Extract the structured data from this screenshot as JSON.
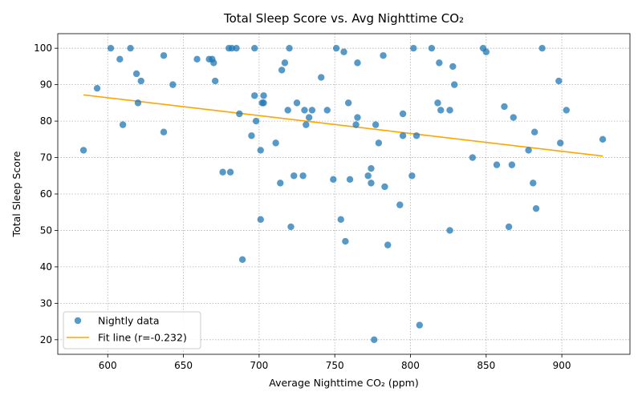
{
  "chart_data": {
    "type": "scatter",
    "title": "Total Sleep Score vs. Avg Nighttime CO₂",
    "xlabel": "Average Nighttime CO₂ (ppm)",
    "ylabel": "Total Sleep Score",
    "xlim": [
      567,
      945
    ],
    "ylim": [
      16,
      104
    ],
    "xticks": [
      600,
      650,
      700,
      750,
      800,
      850,
      900
    ],
    "yticks": [
      20,
      30,
      40,
      50,
      60,
      70,
      80,
      90,
      100
    ],
    "grid": true,
    "grid_style": "dotted",
    "legend_position": "lower-left",
    "series": [
      {
        "name": "Nightly data",
        "kind": "scatter",
        "color": "#1f77b4",
        "points": [
          [
            584,
            72
          ],
          [
            593,
            89
          ],
          [
            602,
            100
          ],
          [
            608,
            97
          ],
          [
            610,
            79
          ],
          [
            615,
            100
          ],
          [
            619,
            93
          ],
          [
            620,
            85
          ],
          [
            622,
            91
          ],
          [
            637,
            77
          ],
          [
            637,
            98
          ],
          [
            643,
            90
          ],
          [
            659,
            97
          ],
          [
            667,
            97
          ],
          [
            669,
            97
          ],
          [
            670,
            96
          ],
          [
            671,
            91
          ],
          [
            676,
            66
          ],
          [
            680,
            100
          ],
          [
            681,
            66
          ],
          [
            682,
            100
          ],
          [
            685,
            100
          ],
          [
            687,
            82
          ],
          [
            689,
            42
          ],
          [
            695,
            76
          ],
          [
            697,
            100
          ],
          [
            697,
            87
          ],
          [
            698,
            80
          ],
          [
            701,
            72
          ],
          [
            701,
            53
          ],
          [
            702,
            85
          ],
          [
            703,
            87
          ],
          [
            703,
            85
          ],
          [
            711,
            74
          ],
          [
            714,
            63
          ],
          [
            715,
            94
          ],
          [
            717,
            96
          ],
          [
            719,
            83
          ],
          [
            720,
            100
          ],
          [
            721,
            51
          ],
          [
            723,
            65
          ],
          [
            725,
            85
          ],
          [
            729,
            65
          ],
          [
            730,
            83
          ],
          [
            731,
            79
          ],
          [
            733,
            81
          ],
          [
            735,
            83
          ],
          [
            741,
            92
          ],
          [
            745,
            83
          ],
          [
            749,
            64
          ],
          [
            751,
            100
          ],
          [
            754,
            53
          ],
          [
            756,
            99
          ],
          [
            757,
            47
          ],
          [
            759,
            85
          ],
          [
            760,
            64
          ],
          [
            764,
            79
          ],
          [
            765,
            96
          ],
          [
            765,
            81
          ],
          [
            772,
            65
          ],
          [
            774,
            67
          ],
          [
            774,
            63
          ],
          [
            776,
            20
          ],
          [
            777,
            79
          ],
          [
            779,
            74
          ],
          [
            782,
            98
          ],
          [
            783,
            62
          ],
          [
            785,
            46
          ],
          [
            793,
            57
          ],
          [
            795,
            82
          ],
          [
            795,
            76
          ],
          [
            801,
            65
          ],
          [
            802,
            100
          ],
          [
            804,
            76
          ],
          [
            806,
            24
          ],
          [
            814,
            100
          ],
          [
            818,
            85
          ],
          [
            819,
            96
          ],
          [
            820,
            83
          ],
          [
            826,
            83
          ],
          [
            826,
            50
          ],
          [
            828,
            95
          ],
          [
            829,
            90
          ],
          [
            841,
            70
          ],
          [
            848,
            100
          ],
          [
            850,
            99
          ],
          [
            857,
            68
          ],
          [
            862,
            84
          ],
          [
            865,
            51
          ],
          [
            867,
            68
          ],
          [
            868,
            81
          ],
          [
            878,
            72
          ],
          [
            881,
            63
          ],
          [
            882,
            77
          ],
          [
            883,
            56
          ],
          [
            887,
            100
          ],
          [
            898,
            91
          ],
          [
            899,
            74
          ],
          [
            903,
            83
          ],
          [
            927,
            75
          ]
        ]
      },
      {
        "name": "Fit line (r=-0.232)",
        "kind": "line",
        "color": "#ffa500",
        "x": [
          584,
          927
        ],
        "y": [
          87.2,
          70.4
        ]
      }
    ]
  }
}
